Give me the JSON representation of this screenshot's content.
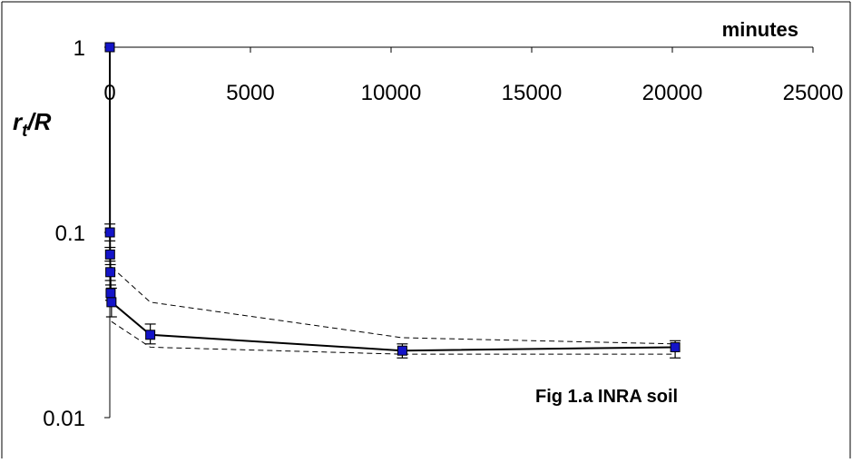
{
  "chart_data": {
    "type": "scatter",
    "title": "",
    "annotation": "Fig 1.a INRA soil",
    "xlabel": "minutes",
    "ylabel": {
      "main": "r",
      "subscript": "t",
      "rest": "/R"
    },
    "x_axis_position": "top",
    "xlim": [
      0,
      25000
    ],
    "x_ticks": [
      0,
      5000,
      10000,
      15000,
      20000,
      25000
    ],
    "x_tick_labels": [
      "0",
      "5000",
      "10000",
      "15000",
      "20000",
      "25000"
    ],
    "y_scale": "log",
    "ylim": [
      0.01,
      1
    ],
    "y_ticks": [
      0.01,
      0.1,
      1
    ],
    "y_tick_labels": [
      "0.01",
      "0.1",
      "1"
    ],
    "grid": false,
    "legend": "none",
    "marker_color": "#1414c8",
    "series": [
      {
        "style": "solid-with-markers",
        "points": [
          {
            "x": 0,
            "y": 1.0
          },
          {
            "x": 5,
            "y": 0.1,
            "err": [
              0.09,
              0.111
            ]
          },
          {
            "x": 10,
            "y": 0.076,
            "err": [
              0.07,
              0.083
            ]
          },
          {
            "x": 20,
            "y": 0.061,
            "err": [
              0.055,
              0.067
            ]
          },
          {
            "x": 30,
            "y": 0.047,
            "err": [
              0.043,
              0.052
            ]
          },
          {
            "x": 60,
            "y": 0.042,
            "err": [
              0.035,
              0.05
            ]
          },
          {
            "x": 1440,
            "y": 0.028,
            "err": [
              0.025,
              0.032
            ]
          },
          {
            "x": 10400,
            "y": 0.023,
            "err": [
              0.021,
              0.025
            ]
          },
          {
            "x": 20100,
            "y": 0.024,
            "err": [
              0.021,
              0.026
            ]
          }
        ]
      },
      {
        "style": "dashed",
        "points": [
          {
            "x": 60,
            "y": 0.065
          },
          {
            "x": 1440,
            "y": 0.042
          },
          {
            "x": 10400,
            "y": 0.027
          },
          {
            "x": 20100,
            "y": 0.025
          }
        ]
      },
      {
        "style": "dashed",
        "points": [
          {
            "x": 60,
            "y": 0.033
          },
          {
            "x": 1440,
            "y": 0.024
          },
          {
            "x": 10400,
            "y": 0.022
          },
          {
            "x": 20100,
            "y": 0.022
          }
        ]
      }
    ]
  }
}
